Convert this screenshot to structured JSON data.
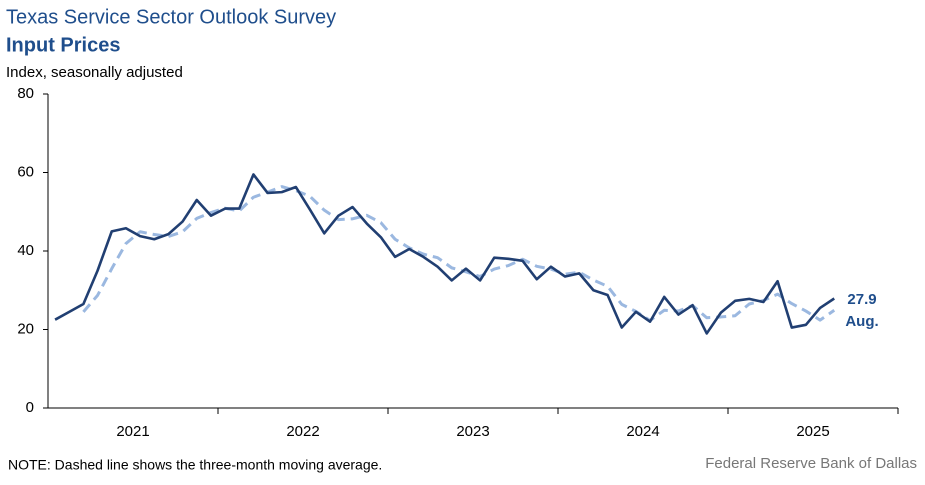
{
  "chart_data": {
    "type": "line",
    "title": "Texas Service Sector Outlook Survey",
    "subtitle": "Input Prices",
    "y_label": "Index, seasonally adjusted",
    "note": "NOTE: Dashed line shows the three-month moving average.",
    "source": "Federal Reserve Bank of Dallas",
    "annotations": [
      "27.9",
      "Aug."
    ],
    "categories": [
      "2021",
      null,
      null,
      null,
      null,
      null,
      null,
      null,
      null,
      null,
      null,
      null,
      "2022",
      null,
      null,
      null,
      null,
      null,
      null,
      null,
      null,
      null,
      null,
      null,
      "2023",
      null,
      null,
      null,
      null,
      null,
      null,
      null,
      null,
      null,
      null,
      null,
      "2024",
      null,
      null,
      null,
      null,
      null,
      null,
      null,
      null,
      null,
      null,
      null,
      "2025",
      null,
      null,
      null,
      null,
      null,
      null,
      null
    ],
    "series": [
      {
        "color": "#213f72",
        "dashed": false,
        "values": [
          22.5,
          24.5,
          26.5,
          35,
          45,
          45.8,
          43.8,
          43,
          44.3,
          47.5,
          53,
          49,
          50.8,
          50.8,
          59.5,
          54.8,
          55,
          56.3,
          50.5,
          44.5,
          49,
          51.2,
          47,
          43.5,
          38.5,
          40.5,
          38.5,
          36,
          32.5,
          35.5,
          32.5,
          38.3,
          38,
          37.5,
          32.8,
          36,
          33.5,
          34.3,
          30,
          28.8,
          20.5,
          24.5,
          22,
          28.3,
          23.8,
          26.2,
          19,
          24.3,
          27.3,
          27.8,
          27,
          32.3,
          20.5,
          21.2,
          25.5,
          27.9
        ]
      },
      {
        "color": "#9bb8e0",
        "dashed": true,
        "values": [
          null,
          null,
          24.5,
          28.7,
          35.5,
          41.9,
          44.9,
          44.2,
          43.7,
          44.9,
          48.3,
          49.8,
          50.9,
          50.2,
          53.7,
          55,
          56.4,
          55.4,
          53.9,
          50.4,
          48,
          48.2,
          49.1,
          47.2,
          43,
          40.8,
          39.2,
          38.3,
          35.7,
          34.7,
          33.5,
          35.4,
          36.3,
          37.9,
          36.1,
          35.4,
          34.1,
          34.6,
          32.6,
          31,
          26.4,
          24.6,
          22.3,
          24.9,
          24.7,
          26.1,
          23,
          23.2,
          23.5,
          26.5,
          27.4,
          29,
          26.6,
          24.7,
          22.4,
          24.9
        ]
      }
    ],
    "ylim": [
      0,
      80
    ],
    "yticks": [
      0,
      20,
      40,
      60,
      80
    ],
    "grid": false
  }
}
